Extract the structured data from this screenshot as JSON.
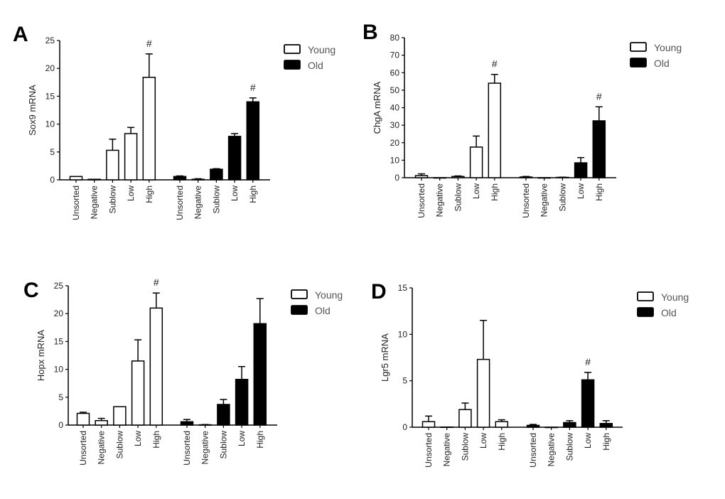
{
  "colors": {
    "young_fill": "#ffffff",
    "old_fill": "#000000",
    "stroke": "#000000"
  },
  "chart_data": [
    {
      "panel_label": "A",
      "type": "bar",
      "ylabel": "Sox9 mRNA",
      "ylim": [
        0,
        25
      ],
      "yticks": [
        0,
        5,
        10,
        15,
        20,
        25
      ],
      "categories": [
        "Unsorted",
        "Negative",
        "Sublow",
        "Low",
        "High"
      ],
      "legend": "top-right",
      "series": [
        {
          "name": "Young",
          "values": [
            0.6,
            0.1,
            5.3,
            8.3,
            18.4
          ],
          "errors": [
            0.0,
            0.0,
            2.0,
            1.1,
            4.2
          ],
          "significance": [
            "",
            "",
            "",
            "",
            "#"
          ]
        },
        {
          "name": "Old",
          "values": [
            0.6,
            0.1,
            1.9,
            7.8,
            14.0
          ],
          "errors": [
            0.1,
            0.1,
            0.1,
            0.5,
            0.7
          ],
          "significance": [
            "",
            "",
            "",
            "",
            "#"
          ]
        }
      ]
    },
    {
      "panel_label": "B",
      "type": "bar",
      "ylabel": "ChgA mRNA",
      "ylim": [
        0,
        80
      ],
      "yticks": [
        0,
        10,
        20,
        30,
        40,
        50,
        60,
        70,
        80
      ],
      "categories": [
        "Unsorted",
        "Negative",
        "Sublow",
        "Low",
        "High"
      ],
      "legend": "top-right",
      "series": [
        {
          "name": "Young",
          "values": [
            1.2,
            0,
            0.7,
            17.5,
            54.0
          ],
          "errors": [
            1.0,
            0,
            0.3,
            6.3,
            5.0
          ],
          "significance": [
            "",
            "",
            "",
            "",
            "#"
          ]
        },
        {
          "name": "Old",
          "values": [
            0.4,
            0,
            0.2,
            8.5,
            32.5
          ],
          "errors": [
            0.3,
            0,
            0.1,
            3.0,
            8.0
          ],
          "significance": [
            "",
            "",
            "",
            "",
            "#"
          ]
        }
      ]
    },
    {
      "panel_label": "C",
      "type": "bar",
      "ylabel": "Hopx mRNA",
      "ylim": [
        0,
        25
      ],
      "yticks": [
        0,
        5,
        10,
        15,
        20,
        25
      ],
      "categories": [
        "Unsorted",
        "Negative",
        "Sublow",
        "Low",
        "High"
      ],
      "legend": "top-right",
      "series": [
        {
          "name": "Young",
          "values": [
            2.1,
            0.8,
            3.3,
            11.5,
            21.0
          ],
          "errors": [
            0.2,
            0.4,
            0,
            3.8,
            2.7
          ],
          "significance": [
            "",
            "",
            "",
            "",
            "#"
          ]
        },
        {
          "name": "Old",
          "values": [
            0.6,
            0.05,
            3.7,
            8.2,
            18.2
          ],
          "errors": [
            0.4,
            0.05,
            0.9,
            2.3,
            4.5
          ],
          "significance": [
            "",
            "",
            "",
            "",
            ""
          ]
        }
      ]
    },
    {
      "panel_label": "D",
      "type": "bar",
      "ylabel": "Lgr5 mRNA",
      "ylim": [
        0,
        15
      ],
      "yticks": [
        0,
        5,
        10,
        15
      ],
      "categories": [
        "Unsorted",
        "Negative",
        "Sublow",
        "Low",
        "High"
      ],
      "legend": "top-right",
      "series": [
        {
          "name": "Young",
          "values": [
            0.6,
            0.02,
            1.9,
            7.3,
            0.6
          ],
          "errors": [
            0.6,
            0,
            0.7,
            4.2,
            0.2
          ],
          "significance": [
            "",
            "",
            "",
            "",
            ""
          ]
        },
        {
          "name": "Old",
          "values": [
            0.2,
            0,
            0.5,
            5.1,
            0.4
          ],
          "errors": [
            0.1,
            0,
            0.2,
            0.8,
            0.3
          ],
          "significance": [
            "",
            "",
            "",
            "#",
            ""
          ]
        }
      ]
    }
  ]
}
